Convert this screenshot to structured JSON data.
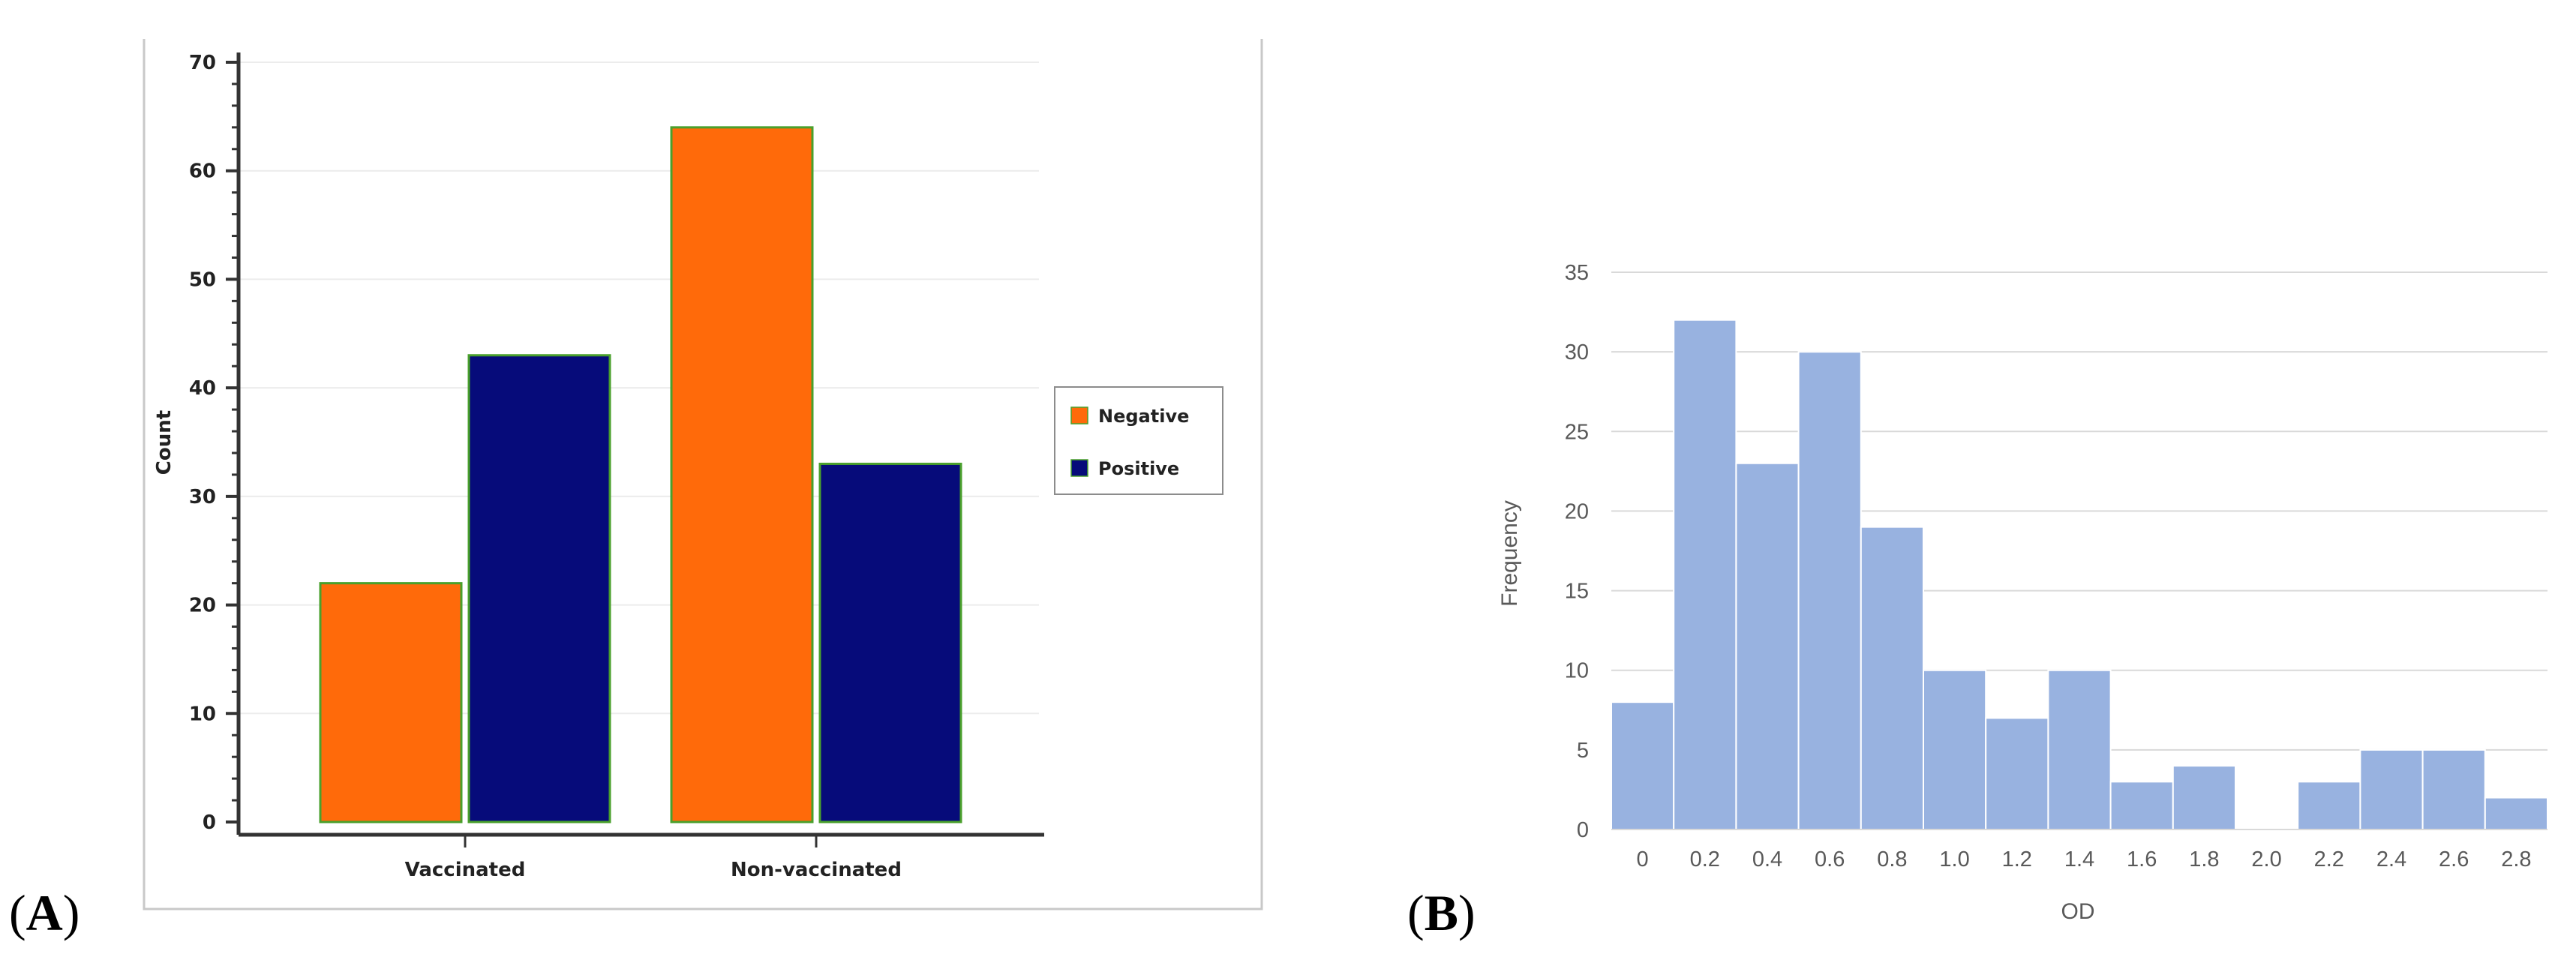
{
  "panels": {
    "a": {
      "label_open": "(",
      "label_letter": "A",
      "label_close": ")"
    },
    "b": {
      "label_open": "(",
      "label_letter": "B",
      "label_close": ")"
    }
  },
  "colors": {
    "negative": "#ff6a0a",
    "positive": "#060b7a",
    "bar_outline": "#4aa02c",
    "histogram": "#98b2e0",
    "grid": "#d9d9d9"
  },
  "chart_data": [
    {
      "type": "bar",
      "title": "",
      "xlabel": "",
      "ylabel": "Count",
      "ylim": [
        0,
        70
      ],
      "yticks": [
        "0",
        "10",
        "20",
        "30",
        "40",
        "50",
        "60",
        "70"
      ],
      "categories": [
        "Vaccinated",
        "Non-vaccinated"
      ],
      "series": [
        {
          "name": "Negative",
          "values": [
            22,
            64
          ]
        },
        {
          "name": "Positive",
          "values": [
            43,
            33
          ]
        }
      ],
      "legend": "right"
    },
    {
      "type": "bar",
      "title": "",
      "xlabel": "OD",
      "ylabel": "Frequency",
      "ylim": [
        0,
        35
      ],
      "yticks": [
        "0",
        "5",
        "10",
        "15",
        "20",
        "25",
        "30",
        "35"
      ],
      "xticks": [
        "0",
        "0.2",
        "0.4",
        "0.6",
        "0.8",
        "1.0",
        "1.2",
        "1.4",
        "1.6",
        "1.8",
        "2.0",
        "2.2",
        "2.4",
        "2.6",
        "2.8"
      ],
      "values": [
        8,
        32,
        23,
        30,
        19,
        10,
        7,
        10,
        3,
        4,
        0,
        3,
        5,
        5,
        2
      ]
    }
  ]
}
